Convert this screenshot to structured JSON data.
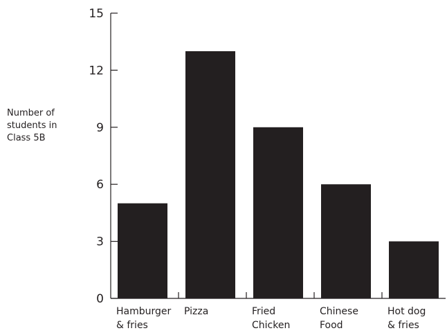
{
  "chart_data": {
    "type": "bar",
    "title": "",
    "xlabel": "",
    "ylabel_lines": [
      "Number of",
      "students in",
      "Class 5B"
    ],
    "categories": [
      [
        "Hamburger",
        "& fries"
      ],
      [
        "Pizza"
      ],
      [
        "Fried",
        "Chicken"
      ],
      [
        "Chinese",
        "Food"
      ],
      [
        "Hot dog",
        "& fries"
      ]
    ],
    "values": [
      5,
      13,
      9,
      6,
      3
    ],
    "ylim": [
      0,
      15
    ],
    "yticks": [
      0,
      3,
      6,
      9,
      12,
      15
    ],
    "grid": false,
    "legend": "none",
    "colors": {
      "bar": "#231f20",
      "axis": "#231f20",
      "text": "#231f20"
    }
  }
}
